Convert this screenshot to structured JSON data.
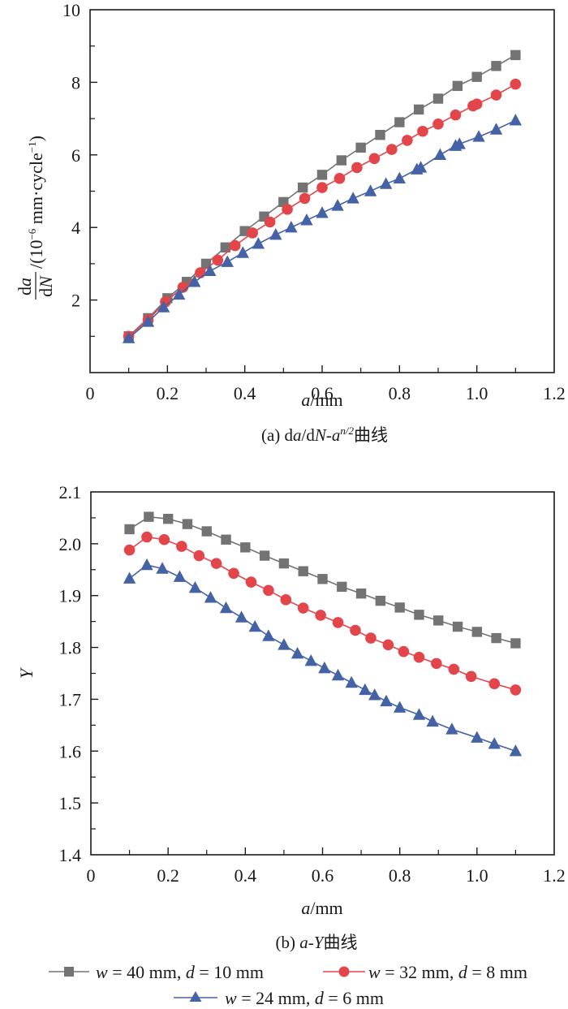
{
  "chart_data": [
    {
      "type": "line",
      "id": "a",
      "caption": {
        "prefix": "(a) d",
        "a": "a",
        "slash": "/d",
        "N": "N",
        "dash": "-",
        "a2": "a",
        "sup": "n/2",
        "suffix": "曲线"
      },
      "xlabel": {
        "var": "a",
        "unit": "/mm"
      },
      "ylabel": {
        "frac_num": "da",
        "frac_den": "dN",
        "unit_text": "/(10",
        "exp": "−6",
        "unit_rest": " mm·cycle",
        "exp2": "−1",
        "close": ")"
      },
      "xlim": [
        0,
        1.2
      ],
      "ylim": [
        0,
        10
      ],
      "xticks": [
        0,
        0.2,
        0.4,
        0.6,
        0.8,
        1.0,
        1.2
      ],
      "xtick_labels": [
        "0",
        "0.2",
        "0.4",
        "0.6",
        "0.8",
        "1.0",
        "1.2"
      ],
      "yticks": [
        2,
        4,
        6,
        8,
        10
      ],
      "ytick_labels": [
        "2",
        "4",
        "6",
        "8",
        "10"
      ],
      "x_minor": [
        0.1,
        0.3,
        0.5,
        0.7,
        0.9,
        1.1
      ],
      "y_minor": [
        1,
        3,
        5,
        7,
        9
      ],
      "grid": false,
      "series": [
        {
          "name": "w = 40 mm, d = 10 mm",
          "color": "#737373",
          "marker": "square",
          "x": [
            0.1,
            0.15,
            0.2,
            0.25,
            0.3,
            0.35,
            0.4,
            0.45,
            0.5,
            0.55,
            0.6,
            0.65,
            0.7,
            0.75,
            0.8,
            0.85,
            0.9,
            0.95,
            1.0,
            1.05,
            1.1
          ],
          "y": [
            1.0,
            1.5,
            2.05,
            2.5,
            3.0,
            3.45,
            3.9,
            4.3,
            4.7,
            5.1,
            5.45,
            5.85,
            6.2,
            6.55,
            6.9,
            7.25,
            7.55,
            7.9,
            8.15,
            8.45,
            8.75
          ]
        },
        {
          "name": "w = 32 mm, d = 8 mm",
          "color": "#e2454a",
          "marker": "circle",
          "x": [
            0.1,
            0.15,
            0.195,
            0.24,
            0.285,
            0.33,
            0.375,
            0.42,
            0.465,
            0.51,
            0.555,
            0.6,
            0.645,
            0.69,
            0.735,
            0.78,
            0.82,
            0.86,
            0.9,
            0.945,
            0.99,
            1.0,
            1.05,
            1.1
          ],
          "y": [
            1.0,
            1.45,
            1.95,
            2.35,
            2.75,
            3.1,
            3.5,
            3.85,
            4.15,
            4.5,
            4.8,
            5.1,
            5.35,
            5.65,
            5.9,
            6.15,
            6.4,
            6.65,
            6.85,
            7.1,
            7.35,
            7.4,
            7.65,
            7.95
          ]
        },
        {
          "name": "w = 24 mm, d = 6 mm",
          "color": "#4562a6",
          "marker": "triangle",
          "x": [
            0.1,
            0.15,
            0.19,
            0.23,
            0.27,
            0.31,
            0.355,
            0.395,
            0.435,
            0.48,
            0.52,
            0.56,
            0.6,
            0.64,
            0.68,
            0.725,
            0.765,
            0.8,
            0.845,
            0.855,
            0.905,
            0.945,
            0.955,
            1.005,
            1.05,
            1.1
          ],
          "y": [
            0.95,
            1.4,
            1.8,
            2.15,
            2.5,
            2.8,
            3.05,
            3.3,
            3.55,
            3.8,
            4.0,
            4.2,
            4.4,
            4.6,
            4.8,
            5.0,
            5.2,
            5.35,
            5.6,
            5.65,
            6.0,
            6.25,
            6.3,
            6.5,
            6.7,
            6.95
          ]
        }
      ]
    },
    {
      "type": "line",
      "id": "b",
      "caption": {
        "prefix": "(b) ",
        "a": "a",
        "dash": "-",
        "Y": "Y",
        "suffix": "曲线"
      },
      "xlabel": {
        "var": "a",
        "unit": "/mm"
      },
      "ylabel": {
        "var": "Y"
      },
      "xlim": [
        0,
        1.2
      ],
      "ylim": [
        1.4,
        2.1
      ],
      "xticks": [
        0,
        0.2,
        0.4,
        0.6,
        0.8,
        1.0,
        1.2
      ],
      "xtick_labels": [
        "0",
        "0.2",
        "0.4",
        "0.6",
        "0.8",
        "1.0",
        "1.2"
      ],
      "yticks": [
        1.4,
        1.5,
        1.6,
        1.7,
        1.8,
        1.9,
        2.0,
        2.1
      ],
      "ytick_labels": [
        "1.4",
        "1.5",
        "1.6",
        "1.7",
        "1.8",
        "1.9",
        "2.0",
        "2.1"
      ],
      "x_minor": [
        0.1,
        0.3,
        0.5,
        0.7,
        0.9,
        1.1
      ],
      "y_minor": [
        1.45,
        1.55,
        1.65,
        1.75,
        1.85,
        1.95,
        2.05
      ],
      "grid": false,
      "series": [
        {
          "name": "w = 40 mm, d = 10 mm",
          "color": "#737373",
          "marker": "square",
          "x": [
            0.1,
            0.15,
            0.2,
            0.25,
            0.3,
            0.35,
            0.4,
            0.45,
            0.5,
            0.55,
            0.6,
            0.65,
            0.7,
            0.75,
            0.8,
            0.85,
            0.9,
            0.95,
            1.0,
            1.05,
            1.1
          ],
          "y": [
            2.028,
            2.052,
            2.048,
            2.038,
            2.024,
            2.008,
            1.993,
            1.977,
            1.962,
            1.947,
            1.932,
            1.917,
            1.904,
            1.89,
            1.877,
            1.863,
            1.852,
            1.84,
            1.83,
            1.818,
            1.808
          ]
        },
        {
          "name": "w = 32 mm, d = 8 mm",
          "color": "#e2454a",
          "marker": "circle",
          "x": [
            0.1,
            0.145,
            0.19,
            0.235,
            0.28,
            0.325,
            0.37,
            0.415,
            0.46,
            0.505,
            0.55,
            0.595,
            0.64,
            0.685,
            0.725,
            0.77,
            0.81,
            0.85,
            0.895,
            0.94,
            0.985,
            1.045,
            1.1
          ],
          "y": [
            1.988,
            2.013,
            2.008,
            1.995,
            1.977,
            1.962,
            1.943,
            1.926,
            1.91,
            1.892,
            1.876,
            1.862,
            1.848,
            1.833,
            1.818,
            1.805,
            1.792,
            1.781,
            1.769,
            1.758,
            1.744,
            1.73,
            1.718
          ]
        },
        {
          "name": "w = 24 mm, d = 6 mm",
          "color": "#4562a6",
          "marker": "triangle",
          "x": [
            0.1,
            0.145,
            0.185,
            0.23,
            0.27,
            0.31,
            0.35,
            0.39,
            0.425,
            0.46,
            0.5,
            0.535,
            0.57,
            0.605,
            0.64,
            0.675,
            0.71,
            0.735,
            0.765,
            0.8,
            0.85,
            0.885,
            0.935,
            1.0,
            1.045,
            1.1
          ],
          "y": [
            1.933,
            1.959,
            1.952,
            1.936,
            1.915,
            1.896,
            1.876,
            1.858,
            1.84,
            1.822,
            1.805,
            1.788,
            1.774,
            1.76,
            1.746,
            1.732,
            1.718,
            1.708,
            1.696,
            1.684,
            1.67,
            1.657,
            1.642,
            1.626,
            1.614,
            1.6
          ]
        }
      ]
    }
  ],
  "legend": {
    "placement": "bottom",
    "items": [
      {
        "w": "w",
        "eq1": " = 40 mm, ",
        "d": "d",
        "eq2": " = 10 mm",
        "color": "#737373",
        "marker": "square"
      },
      {
        "w": "w",
        "eq1": " = 32 mm, ",
        "d": "d",
        "eq2": " = 8 mm",
        "color": "#e2454a",
        "marker": "circle"
      },
      {
        "w": "w",
        "eq1": " = 24 mm, ",
        "d": "d",
        "eq2": " = 6 mm",
        "color": "#4562a6",
        "marker": "triangle"
      }
    ]
  }
}
